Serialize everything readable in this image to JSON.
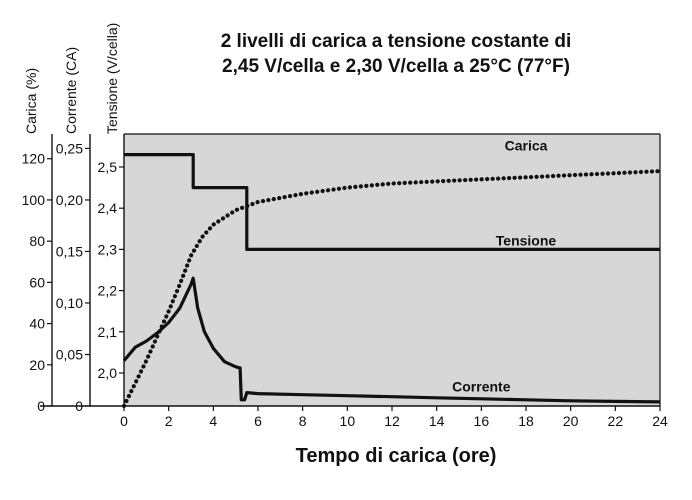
{
  "chart_data": {
    "type": "line",
    "title_lines": [
      "2 livelli di carica a tensione costante di",
      "2,45 V/cella e 2,30 V/cella a 25°C (77°F)"
    ],
    "xlabel": "Tempo di carica (ore)",
    "x_ticks": [
      "0",
      "2",
      "4",
      "6",
      "8",
      "10",
      "12",
      "14",
      "16",
      "18",
      "20",
      "22",
      "24"
    ],
    "xlim": [
      0,
      24
    ],
    "plot_background": "#d7d7d7",
    "axes": [
      {
        "id": "carica",
        "label": "Carica (%)",
        "range": [
          0,
          132
        ],
        "ticks": [
          {
            "value": 0,
            "text": "0"
          },
          {
            "value": 20,
            "text": "20"
          },
          {
            "value": 40,
            "text": "40"
          },
          {
            "value": 60,
            "text": "60"
          },
          {
            "value": 80,
            "text": "80"
          },
          {
            "value": 100,
            "text": "100"
          },
          {
            "value": 120,
            "text": "120"
          }
        ]
      },
      {
        "id": "corrente",
        "label": "Corrente (CA)",
        "range": [
          0,
          0.264
        ],
        "ticks": [
          {
            "value": 0,
            "text": "0"
          },
          {
            "value": 0.05,
            "text": "0,05"
          },
          {
            "value": 0.1,
            "text": "0,10"
          },
          {
            "value": 0.15,
            "text": "0,15"
          },
          {
            "value": 0.2,
            "text": "0,20"
          },
          {
            "value": 0.25,
            "text": "0,25"
          }
        ]
      },
      {
        "id": "tensione",
        "label": "Tensione (V/cella)",
        "range": [
          1.92,
          2.58
        ],
        "ticks": [
          {
            "value": 2.0,
            "text": "2,0"
          },
          {
            "value": 2.1,
            "text": "2,1"
          },
          {
            "value": 2.2,
            "text": "2,2"
          },
          {
            "value": 2.3,
            "text": "2,3"
          },
          {
            "value": 2.4,
            "text": "2,4"
          },
          {
            "value": 2.5,
            "text": "2,5"
          }
        ]
      }
    ],
    "series": [
      {
        "name": "Carica",
        "axis": "carica",
        "style": "dotted",
        "label_at": [
          18,
          124
        ],
        "points": [
          [
            0,
            0
          ],
          [
            0.5,
            11
          ],
          [
            1,
            22
          ],
          [
            1.5,
            34
          ],
          [
            2,
            46
          ],
          [
            2.5,
            59
          ],
          [
            3,
            73
          ],
          [
            3.5,
            82
          ],
          [
            4,
            88
          ],
          [
            5,
            95
          ],
          [
            6,
            99
          ],
          [
            7,
            101
          ],
          [
            8,
            103
          ],
          [
            10,
            106
          ],
          [
            12,
            108
          ],
          [
            14,
            109
          ],
          [
            16,
            110
          ],
          [
            18,
            111
          ],
          [
            20,
            112
          ],
          [
            22,
            113
          ],
          [
            24,
            114
          ]
        ]
      },
      {
        "name": "Tensione",
        "axis": "tensione",
        "style": "solid",
        "label_at": [
          18,
          2.31
        ],
        "points": [
          [
            0,
            2.53
          ],
          [
            3.1,
            2.53
          ],
          [
            3.1,
            2.45
          ],
          [
            5.5,
            2.45
          ],
          [
            5.5,
            2.3
          ],
          [
            24,
            2.3
          ]
        ]
      },
      {
        "name": "Corrente",
        "axis": "corrente",
        "style": "solid",
        "label_at": [
          16,
          0.014
        ],
        "points": [
          [
            0,
            0.044
          ],
          [
            0.5,
            0.057
          ],
          [
            1,
            0.063
          ],
          [
            1.5,
            0.071
          ],
          [
            2,
            0.081
          ],
          [
            2.5,
            0.095
          ],
          [
            3,
            0.118
          ],
          [
            3.1,
            0.124
          ],
          [
            3.3,
            0.095
          ],
          [
            3.6,
            0.072
          ],
          [
            4,
            0.056
          ],
          [
            4.5,
            0.043
          ],
          [
            5,
            0.038
          ],
          [
            5.2,
            0.037
          ],
          [
            5.25,
            0.006
          ],
          [
            5.4,
            0.006
          ],
          [
            5.5,
            0.013
          ],
          [
            6,
            0.012
          ],
          [
            8,
            0.011
          ],
          [
            10,
            0.01
          ],
          [
            12,
            0.009
          ],
          [
            14,
            0.008
          ],
          [
            16,
            0.007
          ],
          [
            18,
            0.006
          ],
          [
            20,
            0.005
          ],
          [
            22,
            0.0045
          ],
          [
            24,
            0.004
          ]
        ]
      }
    ]
  }
}
